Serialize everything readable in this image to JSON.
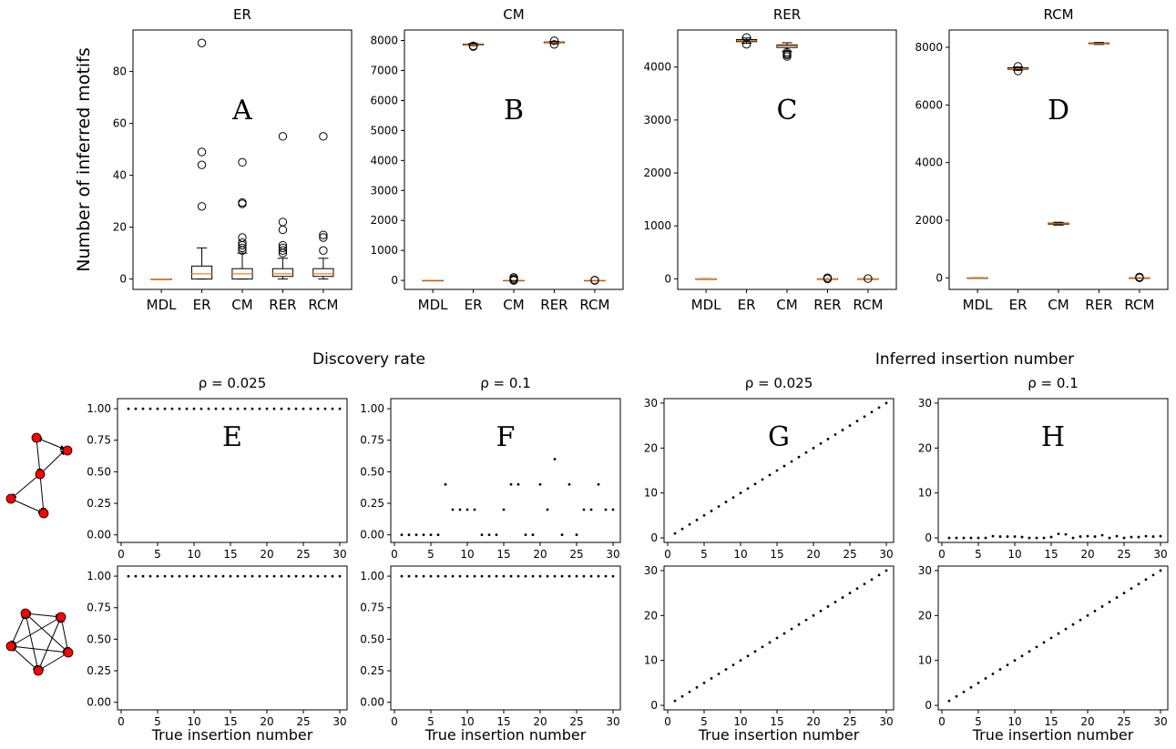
{
  "colors": {
    "median": "#ff7f0e",
    "node": "#ff0000",
    "axis": "#000000"
  },
  "group_titles": {
    "discovery": "Discovery rate",
    "inferred": "Inferred insertion number"
  },
  "motif_icons": [
    "motif-5-node-sparse-icon",
    "motif-5-node-dense-icon"
  ],
  "chart_data": [
    {
      "type": "box",
      "id": "A",
      "panel_label": "A",
      "title": "ER",
      "ylabel": "Number of inferred motifs",
      "xlabel": "",
      "ylim": [
        -4,
        96
      ],
      "yticks": [
        0,
        20,
        40,
        60,
        80
      ],
      "categories": [
        "MDL",
        "ER",
        "CM",
        "RER",
        "RCM"
      ],
      "boxes": [
        {
          "q1": 0,
          "median": 0,
          "q3": 0,
          "whislo": 0,
          "whishi": 0,
          "fliers": []
        },
        {
          "q1": 0,
          "median": 2,
          "q3": 5,
          "whislo": 0,
          "whishi": 12,
          "fliers": [
            28,
            44,
            49,
            91
          ]
        },
        {
          "q1": 0,
          "median": 2,
          "q3": 4,
          "whislo": 0,
          "whishi": 10,
          "fliers": [
            11,
            12,
            13,
            14,
            16,
            29,
            29.5,
            45
          ]
        },
        {
          "q1": 1,
          "median": 2,
          "q3": 4,
          "whislo": 0,
          "whishi": 8,
          "fliers": [
            10,
            11,
            12,
            13,
            19,
            22,
            55
          ]
        },
        {
          "q1": 1,
          "median": 2,
          "q3": 4,
          "whislo": 0,
          "whishi": 8,
          "fliers": [
            11,
            16,
            17,
            55
          ]
        }
      ]
    },
    {
      "type": "box",
      "id": "B",
      "panel_label": "B",
      "title": "CM",
      "ylim": [
        -300,
        8350
      ],
      "yticks": [
        0,
        1000,
        2000,
        3000,
        4000,
        5000,
        6000,
        7000,
        8000
      ],
      "categories": [
        "MDL",
        "ER",
        "CM",
        "RER",
        "RCM"
      ],
      "boxes": [
        {
          "q1": 0,
          "median": 0,
          "q3": 0,
          "whislo": 0,
          "whishi": 0,
          "fliers": []
        },
        {
          "q1": 7850,
          "median": 7860,
          "q3": 7880,
          "whislo": 7830,
          "whishi": 7900,
          "fliers": [
            7800,
            7820
          ]
        },
        {
          "q1": 0,
          "median": 0,
          "q3": 0,
          "whislo": 0,
          "whishi": 0,
          "fliers": [
            0,
            20,
            60,
            100
          ]
        },
        {
          "q1": 7920,
          "median": 7930,
          "q3": 7950,
          "whislo": 7900,
          "whishi": 7970,
          "fliers": [
            7870,
            7990
          ]
        },
        {
          "q1": 0,
          "median": 0,
          "q3": 0,
          "whislo": 0,
          "whishi": 0,
          "fliers": [
            0,
            10
          ]
        }
      ]
    },
    {
      "type": "box",
      "id": "C",
      "panel_label": "C",
      "title": "RER",
      "ylim": [
        -200,
        4700
      ],
      "yticks": [
        0,
        1000,
        2000,
        3000,
        4000
      ],
      "categories": [
        "MDL",
        "ER",
        "CM",
        "RER",
        "RCM"
      ],
      "boxes": [
        {
          "q1": 0,
          "median": 0,
          "q3": 0,
          "whislo": 0,
          "whishi": 0,
          "fliers": []
        },
        {
          "q1": 4480,
          "median": 4500,
          "q3": 4520,
          "whislo": 4450,
          "whishi": 4550,
          "fliers": [
            4430,
            4560
          ]
        },
        {
          "q1": 4370,
          "median": 4400,
          "q3": 4420,
          "whislo": 4300,
          "whishi": 4460,
          "fliers": [
            4200,
            4230,
            4250,
            4280
          ]
        },
        {
          "q1": 0,
          "median": 0,
          "q3": 0,
          "whislo": 0,
          "whishi": 0,
          "fliers": [
            0,
            20
          ]
        },
        {
          "q1": 0,
          "median": 0,
          "q3": 0,
          "whislo": 0,
          "whishi": 0,
          "fliers": [
            5
          ]
        }
      ]
    },
    {
      "type": "box",
      "id": "D",
      "panel_label": "D",
      "title": "RCM",
      "ylim": [
        -400,
        8600
      ],
      "yticks": [
        0,
        2000,
        4000,
        6000,
        8000
      ],
      "categories": [
        "MDL",
        "ER",
        "CM",
        "RER",
        "RCM"
      ],
      "boxes": [
        {
          "q1": 0,
          "median": 0,
          "q3": 0,
          "whislo": 0,
          "whishi": 0,
          "fliers": []
        },
        {
          "q1": 7240,
          "median": 7260,
          "q3": 7290,
          "whislo": 7200,
          "whishi": 7320,
          "fliers": [
            7180,
            7340
          ]
        },
        {
          "q1": 1860,
          "median": 1880,
          "q3": 1900,
          "whislo": 1830,
          "whishi": 1930,
          "fliers": []
        },
        {
          "q1": 8120,
          "median": 8130,
          "q3": 8150,
          "whislo": 8100,
          "whishi": 8170,
          "fliers": []
        },
        {
          "q1": 0,
          "median": 0,
          "q3": 0,
          "whislo": 0,
          "whishi": 0,
          "fliers": [
            0,
            30
          ]
        }
      ]
    },
    {
      "type": "scatter",
      "id": "E",
      "panel_label": "E",
      "title": "ρ = 0.025",
      "xlim": [
        -0.5,
        31
      ],
      "ylim": [
        -0.06,
        1.08
      ],
      "xticks": [
        0,
        5,
        10,
        15,
        20,
        25,
        30
      ],
      "yticks": [
        "0.00",
        "0.25",
        "0.50",
        "0.75",
        "1.00"
      ],
      "x": [
        1,
        2,
        3,
        4,
        5,
        6,
        7,
        8,
        9,
        10,
        11,
        12,
        13,
        14,
        15,
        16,
        17,
        18,
        19,
        20,
        21,
        22,
        23,
        24,
        25,
        26,
        27,
        28,
        29,
        30
      ],
      "y": [
        1,
        1,
        1,
        1,
        1,
        1,
        1,
        1,
        1,
        1,
        1,
        1,
        1,
        1,
        1,
        1,
        1,
        1,
        1,
        1,
        1,
        1,
        1,
        1,
        1,
        1,
        1,
        1,
        1,
        1
      ]
    },
    {
      "type": "scatter",
      "id": "F",
      "panel_label": "F",
      "title": "ρ = 0.1",
      "xlim": [
        -0.5,
        31
      ],
      "ylim": [
        -0.06,
        1.08
      ],
      "xticks": [
        0,
        5,
        10,
        15,
        20,
        25,
        30
      ],
      "yticks": [
        "0.00",
        "0.25",
        "0.50",
        "0.75",
        "1.00"
      ],
      "x": [
        1,
        2,
        3,
        4,
        5,
        6,
        7,
        8,
        9,
        10,
        11,
        12,
        13,
        14,
        15,
        16,
        17,
        18,
        19,
        20,
        21,
        22,
        23,
        24,
        25,
        26,
        27,
        28,
        29,
        30
      ],
      "y": [
        0,
        0,
        0,
        0,
        0,
        0,
        0.4,
        0.2,
        0.2,
        0.2,
        0.2,
        0,
        0,
        0,
        0.2,
        0.4,
        0.4,
        0,
        0,
        0.4,
        0.2,
        0.6,
        0,
        0.4,
        0,
        0.2,
        0.2,
        0.4,
        0.2,
        0.2
      ]
    },
    {
      "type": "scatter",
      "id": "G",
      "panel_label": "G",
      "title": "ρ = 0.025",
      "xlim": [
        -0.5,
        31
      ],
      "ylim": [
        -1,
        31
      ],
      "xticks": [
        0,
        5,
        10,
        15,
        20,
        25,
        30
      ],
      "yticks": [
        0,
        10,
        20,
        30
      ],
      "x": [
        1,
        2,
        3,
        4,
        5,
        6,
        7,
        8,
        9,
        10,
        11,
        12,
        13,
        14,
        15,
        16,
        17,
        18,
        19,
        20,
        21,
        22,
        23,
        24,
        25,
        26,
        27,
        28,
        29,
        30
      ],
      "y": [
        1,
        2,
        3,
        4,
        5,
        6,
        7,
        8,
        9,
        10,
        11,
        12,
        13,
        14,
        15,
        16,
        17,
        18,
        19,
        20,
        21,
        22,
        23,
        24,
        25,
        26,
        27,
        28,
        29,
        30
      ]
    },
    {
      "type": "scatter",
      "id": "H",
      "panel_label": "H",
      "title": "ρ = 0.1",
      "xlim": [
        -0.5,
        31
      ],
      "ylim": [
        -1,
        31
      ],
      "xticks": [
        0,
        5,
        10,
        15,
        20,
        25,
        30
      ],
      "yticks": [
        0,
        10,
        20,
        30
      ],
      "x": [
        1,
        2,
        3,
        4,
        5,
        6,
        7,
        8,
        9,
        10,
        11,
        12,
        13,
        14,
        15,
        16,
        17,
        18,
        19,
        20,
        21,
        22,
        23,
        24,
        25,
        26,
        27,
        28,
        29,
        30
      ],
      "y": [
        0,
        0,
        0,
        0,
        0,
        0,
        0.4,
        0.3,
        0.3,
        0.3,
        0.2,
        0,
        0,
        0,
        0.2,
        0.9,
        0.8,
        0,
        0.3,
        0.4,
        0.3,
        0.6,
        0,
        0.4,
        0,
        0.2,
        0.2,
        0.4,
        0.3,
        0.4
      ]
    },
    {
      "type": "scatter",
      "id": "E2",
      "panel_label": "",
      "title": "",
      "xlabel": "True insertion number",
      "xlim": [
        -0.5,
        31
      ],
      "ylim": [
        -0.06,
        1.08
      ],
      "xticks": [
        0,
        5,
        10,
        15,
        20,
        25,
        30
      ],
      "yticks": [
        "0.00",
        "0.25",
        "0.50",
        "0.75",
        "1.00"
      ],
      "x": [
        1,
        2,
        3,
        4,
        5,
        6,
        7,
        8,
        9,
        10,
        11,
        12,
        13,
        14,
        15,
        16,
        17,
        18,
        19,
        20,
        21,
        22,
        23,
        24,
        25,
        26,
        27,
        28,
        29,
        30
      ],
      "y": [
        1,
        1,
        1,
        1,
        1,
        1,
        1,
        1,
        1,
        1,
        1,
        1,
        1,
        1,
        1,
        1,
        1,
        1,
        1,
        1,
        1,
        1,
        1,
        1,
        1,
        1,
        1,
        1,
        1,
        1
      ]
    },
    {
      "type": "scatter",
      "id": "F2",
      "panel_label": "",
      "title": "",
      "xlabel": "True insertion number",
      "xlim": [
        -0.5,
        31
      ],
      "ylim": [
        -0.06,
        1.08
      ],
      "xticks": [
        0,
        5,
        10,
        15,
        20,
        25,
        30
      ],
      "yticks": [
        "0.00",
        "0.25",
        "0.50",
        "0.75",
        "1.00"
      ],
      "x": [
        1,
        2,
        3,
        4,
        5,
        6,
        7,
        8,
        9,
        10,
        11,
        12,
        13,
        14,
        15,
        16,
        17,
        18,
        19,
        20,
        21,
        22,
        23,
        24,
        25,
        26,
        27,
        28,
        29,
        30
      ],
      "y": [
        1,
        1,
        1,
        1,
        1,
        1,
        1,
        1,
        1,
        1,
        1,
        1,
        1,
        1,
        1,
        1,
        1,
        1,
        1,
        1,
        1,
        1,
        1,
        1,
        1,
        1,
        1,
        1,
        1,
        1
      ]
    },
    {
      "type": "scatter",
      "id": "G2",
      "panel_label": "",
      "title": "",
      "xlabel": "True insertion number",
      "xlim": [
        -0.5,
        31
      ],
      "ylim": [
        -1,
        31
      ],
      "xticks": [
        0,
        5,
        10,
        15,
        20,
        25,
        30
      ],
      "yticks": [
        0,
        10,
        20,
        30
      ],
      "x": [
        1,
        2,
        3,
        4,
        5,
        6,
        7,
        8,
        9,
        10,
        11,
        12,
        13,
        14,
        15,
        16,
        17,
        18,
        19,
        20,
        21,
        22,
        23,
        24,
        25,
        26,
        27,
        28,
        29,
        30
      ],
      "y": [
        1,
        2,
        3,
        4,
        5,
        6,
        7,
        8,
        9,
        10,
        11,
        12,
        13,
        14,
        15,
        16,
        17,
        18,
        19,
        20,
        21,
        22,
        23,
        24,
        25,
        26,
        27,
        28,
        29,
        30
      ]
    },
    {
      "type": "scatter",
      "id": "H2",
      "panel_label": "",
      "title": "",
      "xlabel": "True insertion number",
      "xlim": [
        -0.5,
        31
      ],
      "ylim": [
        -1,
        31
      ],
      "xticks": [
        0,
        5,
        10,
        15,
        20,
        25,
        30
      ],
      "yticks": [
        0,
        10,
        20,
        30
      ],
      "x": [
        1,
        2,
        3,
        4,
        5,
        6,
        7,
        8,
        9,
        10,
        11,
        12,
        13,
        14,
        15,
        16,
        17,
        18,
        19,
        20,
        21,
        22,
        23,
        24,
        25,
        26,
        27,
        28,
        29,
        30
      ],
      "y": [
        1,
        2,
        3,
        4,
        5,
        6,
        7,
        8,
        9,
        10,
        11,
        12,
        13,
        14,
        15,
        16,
        17,
        18,
        19,
        20,
        21,
        22,
        23,
        24,
        25,
        26,
        27,
        28,
        29,
        30
      ]
    }
  ]
}
